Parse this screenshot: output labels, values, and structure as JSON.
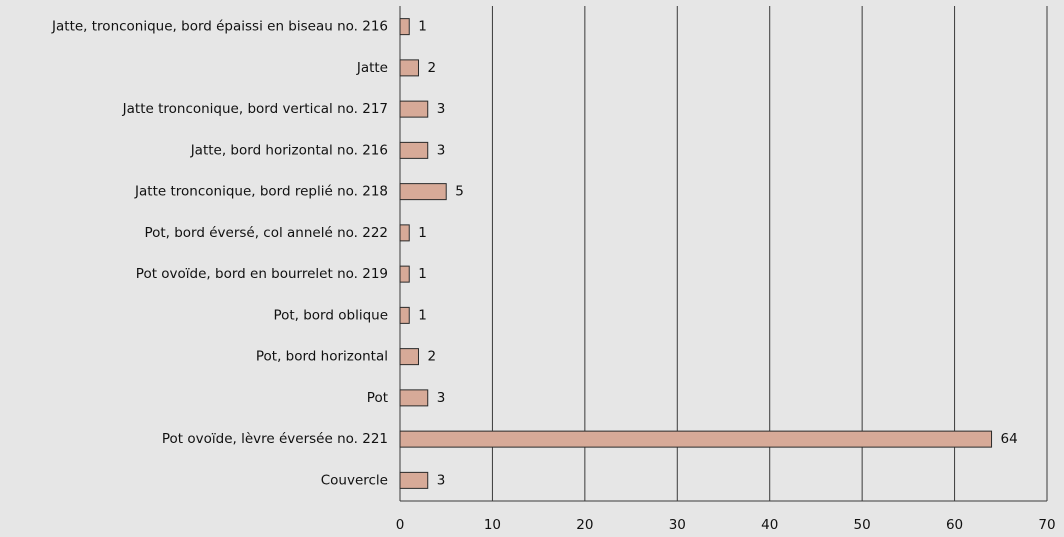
{
  "chart_data": {
    "type": "bar",
    "orientation": "horizontal",
    "categories": [
      "Jatte, tronconique, bord épaissi en biseau no. 216",
      "Jatte",
      "Jatte tronconique, bord vertical no. 217",
      "Jatte, bord horizontal no. 216",
      "Jatte tronconique, bord replié no. 218",
      "Pot, bord éversé, col annelé no. 222",
      "Pot ovoïde, bord en bourrelet no. 219",
      "Pot, bord oblique",
      "Pot, bord horizontal",
      "Pot",
      "Pot ovoïde, lèvre éversée no. 221",
      "Couvercle"
    ],
    "values": [
      1,
      2,
      3,
      3,
      5,
      1,
      1,
      1,
      2,
      3,
      64,
      3
    ],
    "color": "#d7aa98",
    "xlim": [
      0,
      70
    ],
    "xticks": [
      0,
      10,
      20,
      30,
      40,
      50,
      60,
      70
    ],
    "grid": true
  }
}
